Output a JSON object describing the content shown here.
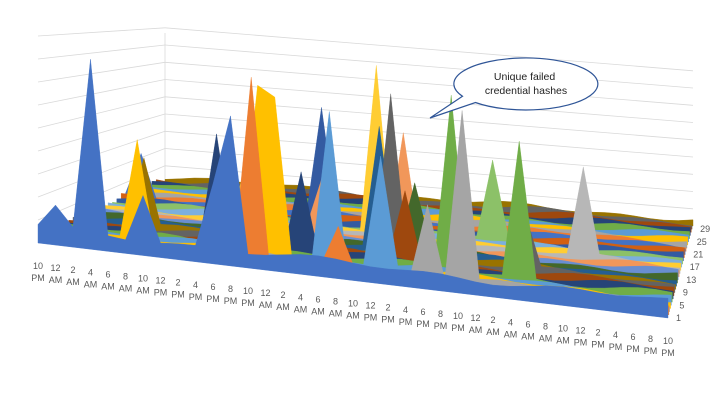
{
  "chart_data": {
    "type": "area",
    "variant": "3d-area",
    "grid": true,
    "x": [
      "10 PM",
      "12 AM",
      "2 AM",
      "4 AM",
      "6 AM",
      "8 AM",
      "10 AM",
      "12 PM",
      "2 PM",
      "4 PM",
      "6 PM",
      "8 PM",
      "10 PM",
      "12 AM",
      "2 AM",
      "4 AM",
      "6 AM",
      "8 AM",
      "10 AM",
      "12 PM",
      "2 PM",
      "4 PM",
      "6 PM",
      "8 PM",
      "10 PM",
      "12 AM",
      "2 AM",
      "4 AM",
      "6 AM",
      "8 AM",
      "10 AM",
      "12 PM",
      "2 PM",
      "4 PM",
      "6 PM",
      "8 PM",
      "10 PM"
    ],
    "series_depth_labels": [
      "1",
      "5",
      "9",
      "13",
      "17",
      "21",
      "25",
      "29"
    ],
    "annotation": "Unique failed credential hashes",
    "background_layers": 30,
    "peaks": [
      {
        "depth": 0,
        "x": "4 AM",
        "value": 95
      },
      {
        "depth": 0,
        "x": "8 PM",
        "value": 75
      },
      {
        "depth": 0,
        "x": "10 AM",
        "value": 30
      },
      {
        "depth": 0,
        "x": "12 AM",
        "value": 20
      },
      {
        "depth": 0,
        "x": "6 PM",
        "value": 40
      },
      {
        "depth": 1,
        "x": "10 PM",
        "value": 95
      },
      {
        "depth": 1,
        "x": "8 AM",
        "value": 25
      },
      {
        "depth": 2,
        "x": "10 PM",
        "value": 90
      },
      {
        "depth": 2,
        "x": "6 PM",
        "value": 40
      },
      {
        "depth": 3,
        "x": "12 AM",
        "value": 85
      },
      {
        "depth": 3,
        "x": "8 AM",
        "value": 55
      },
      {
        "depth": 3,
        "x": "10 PM",
        "value": 90
      },
      {
        "depth": 4,
        "x": "6 AM",
        "value": 80
      },
      {
        "depth": 4,
        "x": "12 PM",
        "value": 60
      },
      {
        "depth": 4,
        "x": "6 PM",
        "value": 55
      },
      {
        "depth": 5,
        "x": "4 AM",
        "value": 75
      },
      {
        "depth": 5,
        "x": "8 PM",
        "value": 95
      },
      {
        "depth": 6,
        "x": "4 PM",
        "value": 60
      },
      {
        "depth": 6,
        "x": "2 AM",
        "value": 45
      },
      {
        "depth": 7,
        "x": "2 PM",
        "value": 40
      },
      {
        "depth": 8,
        "x": "12 PM",
        "value": 90
      },
      {
        "depth": 8,
        "x": "4 AM",
        "value": 35
      },
      {
        "depth": 9,
        "x": "6 AM",
        "value": 40
      },
      {
        "depth": 9,
        "x": "8 PM",
        "value": 60
      },
      {
        "depth": 10,
        "x": "10 AM",
        "value": 70
      },
      {
        "depth": 10,
        "x": "8 PM",
        "value": 50
      },
      {
        "depth": 11,
        "x": "2 PM",
        "value": 40
      },
      {
        "depth": 13,
        "x": "12 PM",
        "value": 65
      },
      {
        "depth": 13,
        "x": "2 AM",
        "value": 35
      },
      {
        "depth": 14,
        "x": "10 AM",
        "value": 55
      },
      {
        "depth": 14,
        "x": "6 PM",
        "value": 45
      },
      {
        "depth": 15,
        "x": "8 AM",
        "value": 100
      },
      {
        "depth": 15,
        "x": "4 PM",
        "value": 40
      },
      {
        "depth": 17,
        "x": "10 PM",
        "value": 50
      },
      {
        "depth": 18,
        "x": "12 AM",
        "value": 70
      },
      {
        "depth": 18,
        "x": "4 PM",
        "value": 40
      },
      {
        "depth": 20,
        "x": "12 AM",
        "value": 30
      },
      {
        "depth": 22,
        "x": "4 PM",
        "value": 30
      }
    ]
  }
}
